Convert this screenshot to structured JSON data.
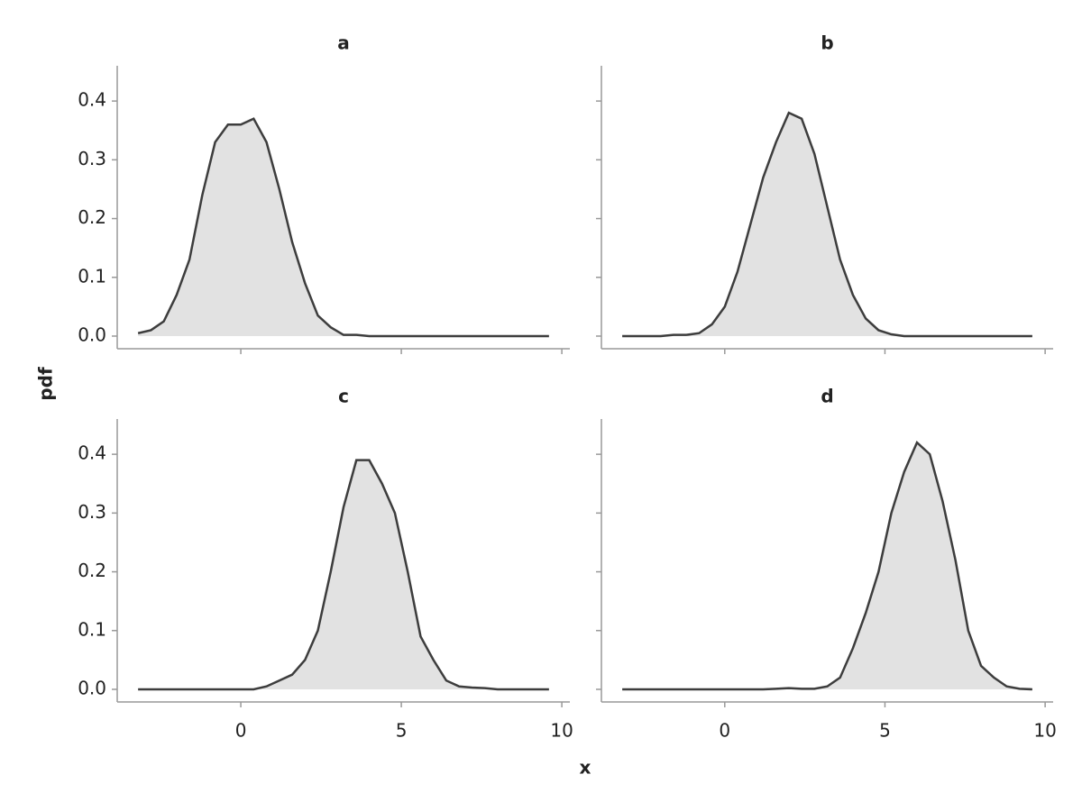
{
  "chart_data": {
    "type": "density",
    "xlabel": "x",
    "ylabel": "pdf",
    "xlim": [
      -3.85,
      10.25
    ],
    "xticks": [
      0,
      5,
      10
    ],
    "ylim": [
      -0.0215,
      0.46
    ],
    "yticks": [
      {
        "value": 0,
        "label": "0.0"
      },
      0.1,
      0.2,
      0.3,
      0.4
    ],
    "color": "#3d3d3d",
    "fill": "#e2e2e2",
    "x": [
      -3.2,
      -2.8,
      -2.4,
      -2.0,
      -1.6,
      -1.2,
      -0.8,
      -0.4,
      0,
      0.4,
      0.8,
      1.2,
      1.6,
      2.0,
      2.4,
      2.8,
      3.2,
      3.6,
      4.0,
      4.4,
      4.8,
      5.2,
      5.6,
      6.0,
      6.4,
      6.8,
      7.2,
      7.6,
      8.0,
      8.4,
      8.8,
      9.2,
      9.6
    ],
    "panels": [
      {
        "title": "a",
        "values": [
          0.005,
          0.01,
          0.025,
          0.07,
          0.13,
          0.24,
          0.33,
          0.36,
          0.36,
          0.37,
          0.33,
          0.25,
          0.16,
          0.09,
          0.035,
          0.015,
          0.002,
          0.002,
          0,
          0,
          0,
          0,
          0,
          0,
          0,
          0,
          0,
          0,
          0,
          0,
          0,
          0,
          0
        ]
      },
      {
        "title": "b",
        "values": [
          0,
          0,
          0,
          0,
          0.002,
          0.002,
          0.005,
          0.02,
          0.05,
          0.11,
          0.19,
          0.27,
          0.33,
          0.38,
          0.37,
          0.31,
          0.22,
          0.13,
          0.07,
          0.03,
          0.01,
          0.003,
          0,
          0,
          0,
          0,
          0,
          0,
          0,
          0,
          0,
          0,
          0
        ]
      },
      {
        "title": "c",
        "values": [
          0,
          0,
          0,
          0,
          0,
          0,
          0,
          0,
          0,
          0,
          0.005,
          0.015,
          0.025,
          0.05,
          0.1,
          0.2,
          0.31,
          0.39,
          0.39,
          0.35,
          0.3,
          0.2,
          0.09,
          0.05,
          0.015,
          0.005,
          0.003,
          0.002,
          0,
          0,
          0,
          0,
          0
        ]
      },
      {
        "title": "d",
        "values": [
          0,
          0,
          0,
          0,
          0,
          0,
          0,
          0,
          0,
          0,
          0,
          0,
          0.001,
          0.002,
          0.001,
          0.001,
          0.005,
          0.02,
          0.07,
          0.13,
          0.2,
          0.3,
          0.37,
          0.42,
          0.4,
          0.32,
          0.22,
          0.1,
          0.04,
          0.02,
          0.005,
          0.001,
          0
        ]
      }
    ]
  }
}
